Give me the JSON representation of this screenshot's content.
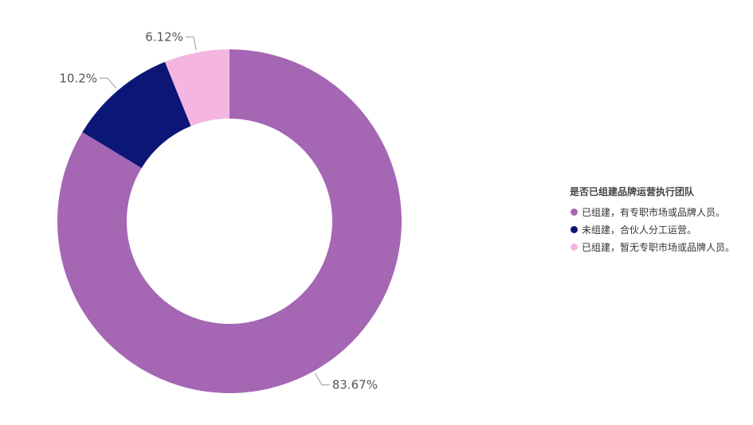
{
  "chart_data": {
    "type": "pie",
    "variant": "donut",
    "legend_title": "是否已组建品牌运营执行团队",
    "legend_position": "right",
    "categories": [
      "已组建，有专职市场或品牌人员。",
      "未组建，合伙人分工运营。",
      "已组建，暂无专职市场或品牌人员。"
    ],
    "values": [
      83.67,
      10.2,
      6.12
    ],
    "data_labels": [
      "83.67%",
      "10.2%",
      "6.12%"
    ],
    "colors": [
      "#a566b4",
      "#0c1677",
      "#f4b6e0"
    ]
  }
}
